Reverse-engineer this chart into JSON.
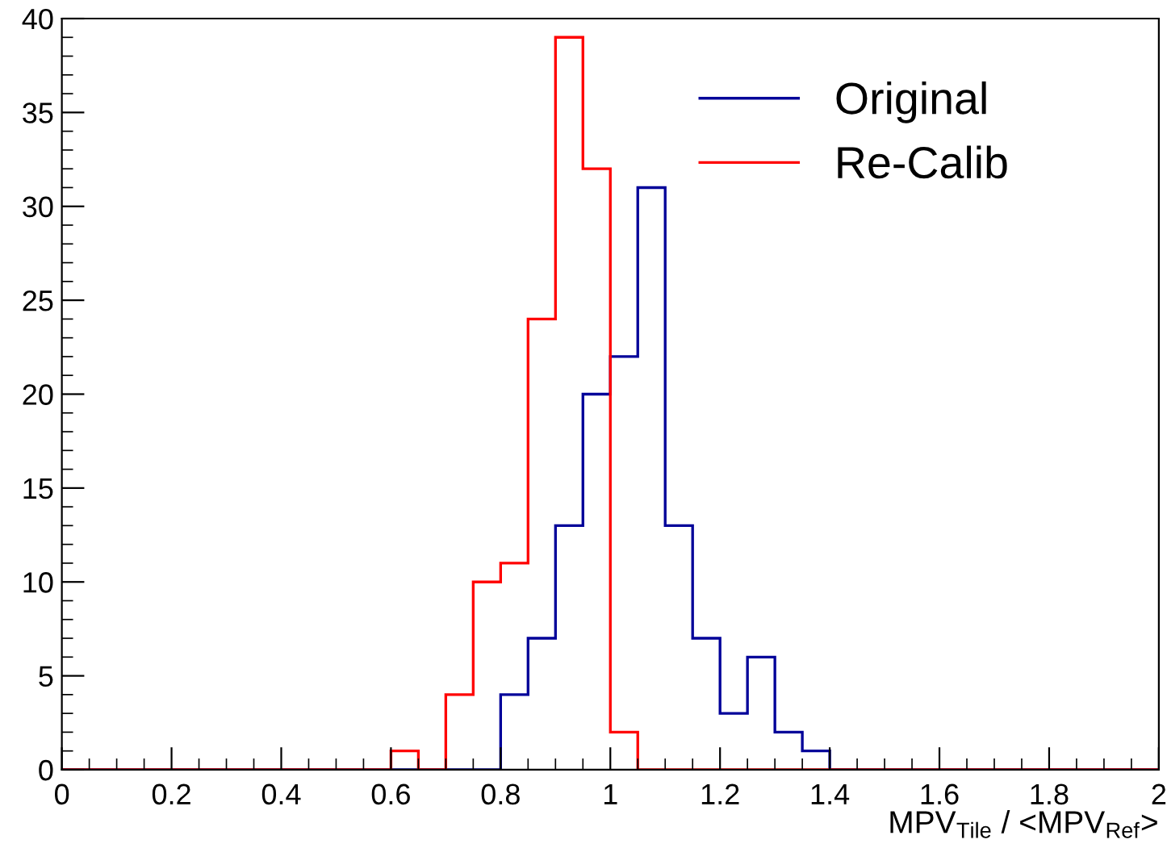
{
  "chart_data": {
    "type": "histogram",
    "xlabel": "MPV$_{Tile}$ / <MPV$_{Ref}$>",
    "bins": [
      0,
      0.05,
      0.1,
      0.15,
      0.2,
      0.25,
      0.3,
      0.35,
      0.4,
      0.45,
      0.5,
      0.55,
      0.6,
      0.65,
      0.7,
      0.75,
      0.8,
      0.85,
      0.9,
      0.95,
      1.0,
      1.05,
      1.1,
      1.15,
      1.2,
      1.25,
      1.3,
      1.35,
      1.4,
      1.45,
      1.5,
      1.55,
      1.6,
      1.65,
      1.7,
      1.75,
      1.8,
      1.85,
      1.9,
      1.95,
      2.0
    ],
    "series": [
      {
        "name": "Original",
        "color": "#000099",
        "values": [
          0,
          0,
          0,
          0,
          0,
          0,
          0,
          0,
          0,
          0,
          0,
          0,
          0,
          0,
          0,
          0,
          4,
          7,
          13,
          20,
          22,
          31,
          13,
          7,
          3,
          6,
          2,
          1,
          0,
          0,
          0,
          0,
          0,
          0,
          0,
          0,
          0,
          0,
          0,
          0
        ]
      },
      {
        "name": "Re-Calib",
        "color": "#ff0000",
        "values": [
          0,
          0,
          0,
          0,
          0,
          0,
          0,
          0,
          0,
          0,
          0,
          0,
          1,
          0,
          4,
          10,
          11,
          24,
          39,
          32,
          2,
          0,
          0,
          0,
          0,
          0,
          0,
          0,
          0,
          0,
          0,
          0,
          0,
          0,
          0,
          0,
          0,
          0,
          0,
          0
        ]
      }
    ],
    "xlim": [
      0,
      2
    ],
    "xticks": [
      0,
      0.2,
      0.4,
      0.6,
      0.8,
      1,
      1.2,
      1.4,
      1.6,
      1.8,
      2
    ],
    "ylim": [
      0,
      40
    ],
    "yticks": [
      0,
      5,
      10,
      15,
      20,
      25,
      30,
      35,
      40
    ],
    "grid": false,
    "legend": "top right"
  }
}
